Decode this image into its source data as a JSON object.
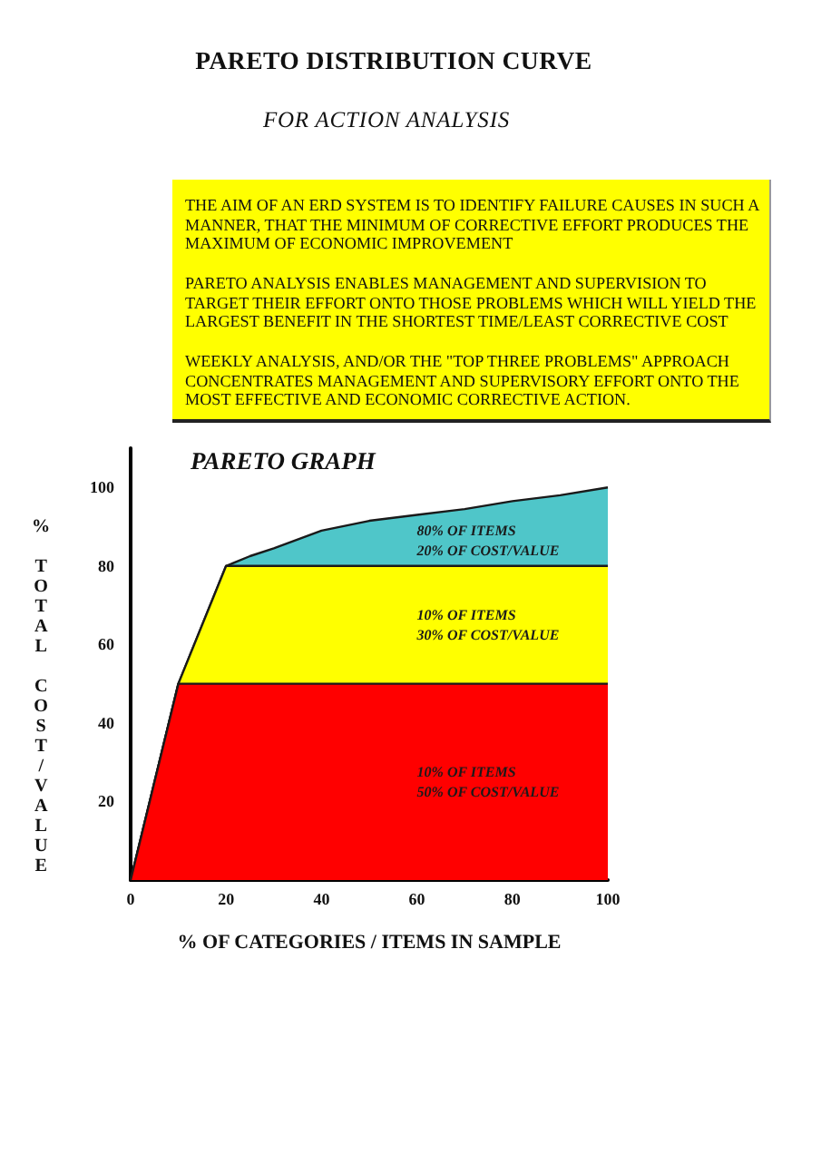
{
  "chart_data": {
    "type": "area",
    "title": "PARETO DISTRIBUTION CURVE",
    "subtitle": "FOR ACTION ANALYSIS",
    "xlabel": "% OF CATEGORIES / ITEMS IN SAMPLE",
    "ylabel": "% TOTAL COST/VALUE",
    "annotations": [
      "THE AIM OF AN ERD SYSTEM IS TO IDENTIFY FAILURE CAUSES IN SUCH A\nMANNER, THAT THE MINIMUM OF CORRECTIVE EFFORT PRODUCES THE\nMAXIMUM OF ECONOMIC IMPROVEMENT",
      "PARETO ANALYSIS ENABLES MANAGEMENT AND SUPERVISION TO\nTARGET THEIR EFFORT ONTO THOSE PROBLEMS WHICH WILL YIELD THE\nLARGEST BENEFIT IN THE SHORTEST TIME/LEAST CORRECTIVE COST",
      "WEEKLY ANALYSIS, AND/OR THE \"TOP THREE PROBLEMS\" APPROACH\nCONCENTRATES MANAGEMENT AND SUPERVISORY EFFORT ONTO THE\nMOST EFFECTIVE AND ECONOMIC CORRECTIVE ACTION.",
      "PARETO GRAPH",
      "80% OF ITEMS\n20% OF COST/VALUE",
      "10% OF ITEMS\n30% OF COST/VALUE",
      "10% OF ITEMS\n50% OF COST/VALUE"
    ],
    "x": [
      0,
      10,
      20,
      25,
      30,
      40,
      50,
      60,
      70,
      80,
      90,
      100
    ],
    "series": [
      {
        "color": "#ff0000",
        "values": [
          0,
          50,
          50,
          50,
          50,
          50,
          50,
          50,
          50,
          50,
          50,
          50
        ]
      },
      {
        "color": "#ffff00",
        "values": [
          0,
          0,
          30,
          30,
          30,
          30,
          30,
          30,
          30,
          30,
          30,
          30
        ]
      },
      {
        "color": "#4fc6c9",
        "values": [
          0,
          0,
          0,
          2.5,
          4.5,
          9,
          11.5,
          13,
          14.5,
          16.5,
          18,
          20
        ]
      }
    ],
    "stacked": true,
    "xlim": [
      0,
      100
    ],
    "xticks": [
      0,
      20,
      40,
      60,
      80,
      100
    ],
    "ylim": [
      0,
      110
    ],
    "yticks": [
      20,
      40,
      60,
      80,
      100
    ]
  }
}
